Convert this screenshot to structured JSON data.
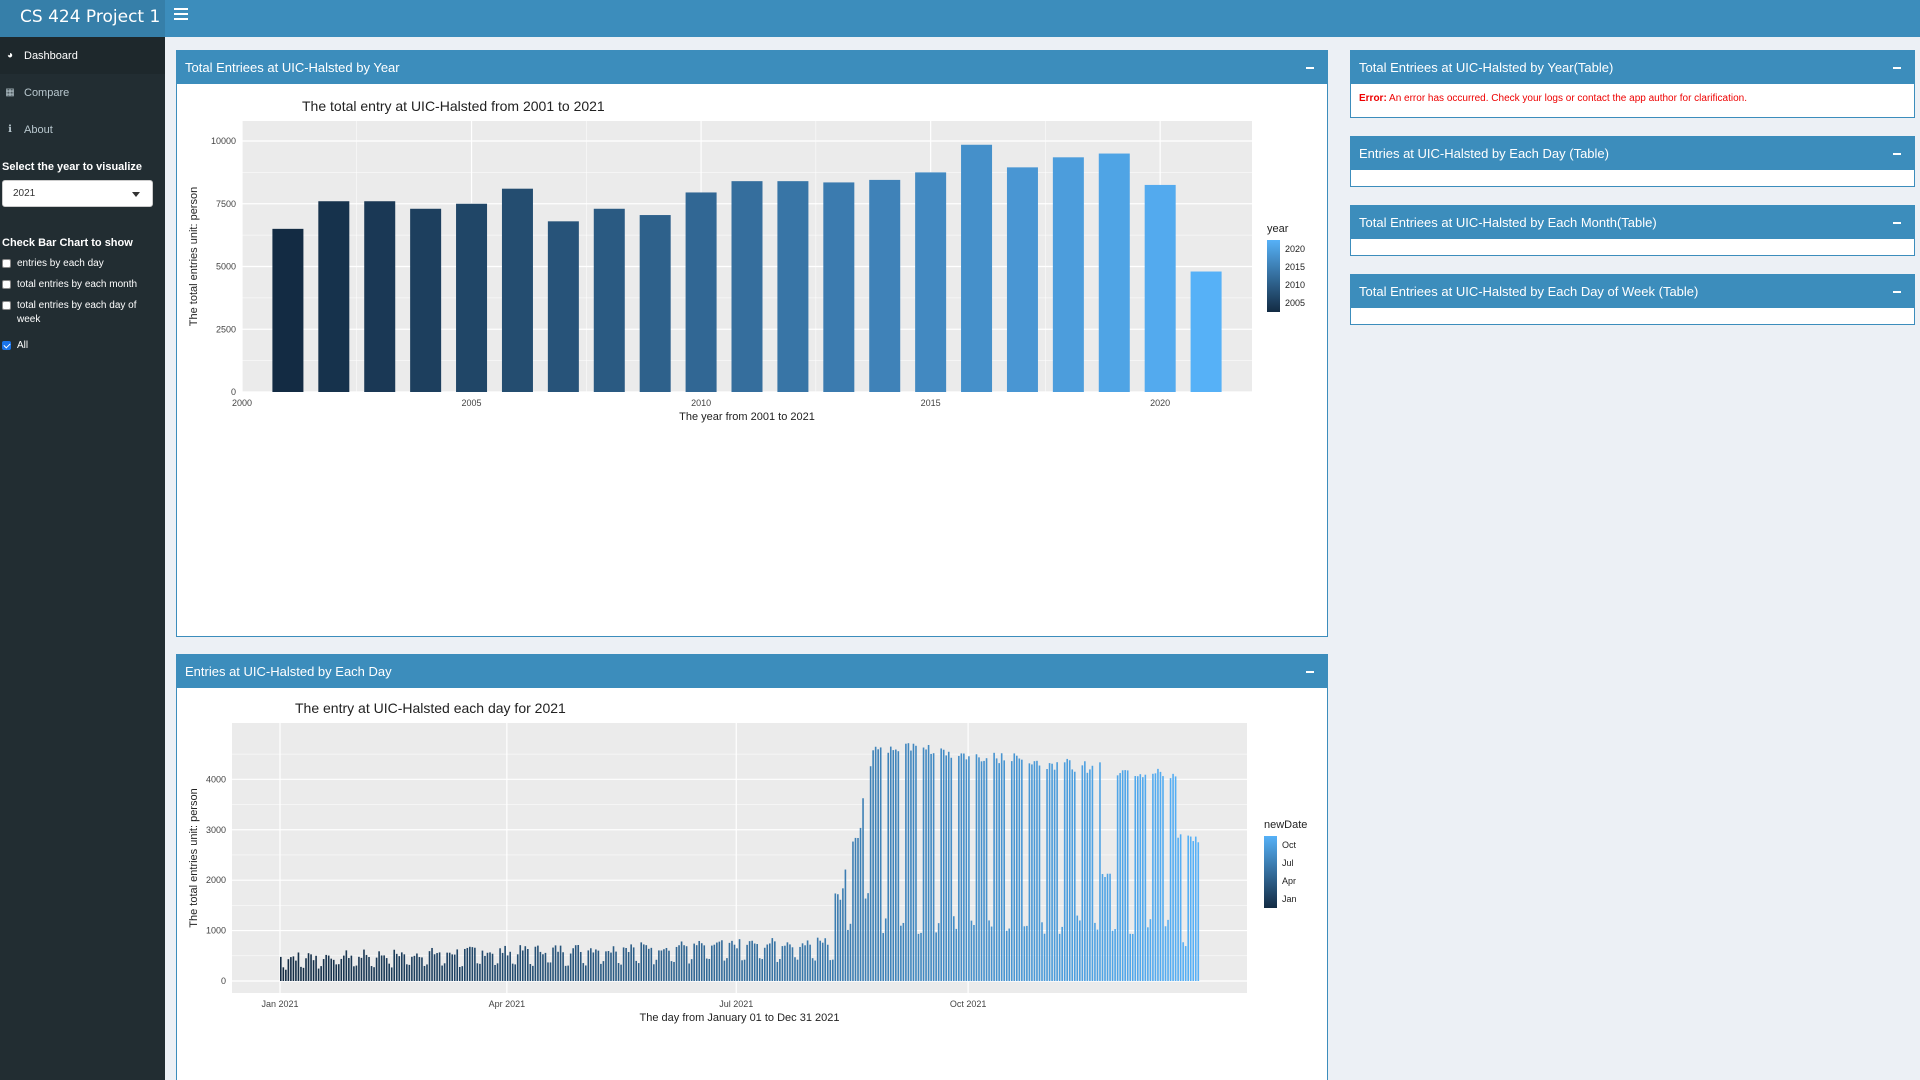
{
  "app": {
    "title": "CS 424 Project 1"
  },
  "sidebar": {
    "items": [
      {
        "label": "Dashboard",
        "icon": "dashboard-icon",
        "active": true
      },
      {
        "label": "Compare",
        "icon": "grid-icon",
        "active": false
      },
      {
        "label": "About",
        "icon": "info-icon",
        "active": false
      }
    ],
    "year_label": "Select the year to visualize",
    "year_value": "2021",
    "check_label": "Check Bar Chart to show",
    "checkboxes": [
      {
        "label": "entries by each day",
        "checked": false
      },
      {
        "label": "total entries by each month",
        "checked": false
      },
      {
        "label": "total entries by each day of",
        "label2": "week",
        "checked": false
      },
      {
        "label": "All",
        "checked": true
      }
    ]
  },
  "panels": {
    "year_chart": "Total Entriees at UIC-Halsted by Year",
    "day_chart": "Entries at UIC-Halsted by Each Day",
    "year_table": "Total Entriees at UIC-Halsted by Year(Table)",
    "day_table": "Entries at UIC-Halsted by Each Day (Table)",
    "month_table": "Total Entriees at UIC-Halsted by Each Month(Table)",
    "dow_table": "Total Entriees at UIC-Halsted by Each Day of Week (Table)",
    "error_label": "Error:",
    "error_text": " An error has occurred. Check your logs or contact the app author for clarification."
  },
  "chart_data": [
    {
      "type": "bar",
      "title": "The total entry at UIC-Halsted from 2001 to 2021",
      "xlabel": "The year from 2001 to 2021",
      "ylabel": "The total entries  unit: person",
      "x": [
        2001,
        2002,
        2003,
        2004,
        2005,
        2006,
        2007,
        2008,
        2009,
        2010,
        2011,
        2012,
        2013,
        2014,
        2015,
        2016,
        2017,
        2018,
        2019,
        2020,
        2021
      ],
      "values": [
        6500,
        7600,
        7600,
        7300,
        7500,
        8100,
        6800,
        7300,
        7050,
        7950,
        8400,
        8400,
        8350,
        8450,
        8750,
        9850,
        8950,
        9350,
        9500,
        8250,
        4800
      ],
      "xlim": [
        2000,
        2022
      ],
      "ylim": [
        0,
        10000
      ],
      "xticks": [
        "2000",
        "2005",
        "2010",
        "2015",
        "2020"
      ],
      "yticks": [
        "0",
        "2500",
        "5000",
        "7500",
        "10000"
      ],
      "legend": {
        "title": "year",
        "labels": [
          "2020",
          "2015",
          "2010",
          "2005"
        ],
        "position": "right"
      },
      "colors": {
        "low": "#132b43",
        "high": "#56b1f7",
        "panel": "#ebebeb"
      },
      "grid": true
    },
    {
      "type": "bar",
      "title": "The entry at UIC-Halsted each day for 2021",
      "xlabel": "The day from January 01 to Dec 31 2021",
      "ylabel": "The total entries  unit: person",
      "x_range": [
        "2021-01-01",
        "2021-12-31"
      ],
      "values_description": "daily entries: ~300-700 from Jan to mid Aug, rising to ~4000-4700 on weekdays from late Aug through Dec",
      "ylim": [
        0,
        4800
      ],
      "xticks": [
        "Jan 2021",
        "Apr 2021",
        "Jul 2021",
        "Oct 2021"
      ],
      "yticks": [
        "0",
        "1000",
        "2000",
        "3000",
        "4000"
      ],
      "legend": {
        "title": "newDate",
        "labels": [
          "Oct",
          "Jul",
          "Apr",
          "Jan"
        ],
        "position": "right"
      },
      "colors": {
        "low": "#132b43",
        "high": "#56b1f7",
        "panel": "#ebebeb"
      },
      "grid": true
    }
  ]
}
